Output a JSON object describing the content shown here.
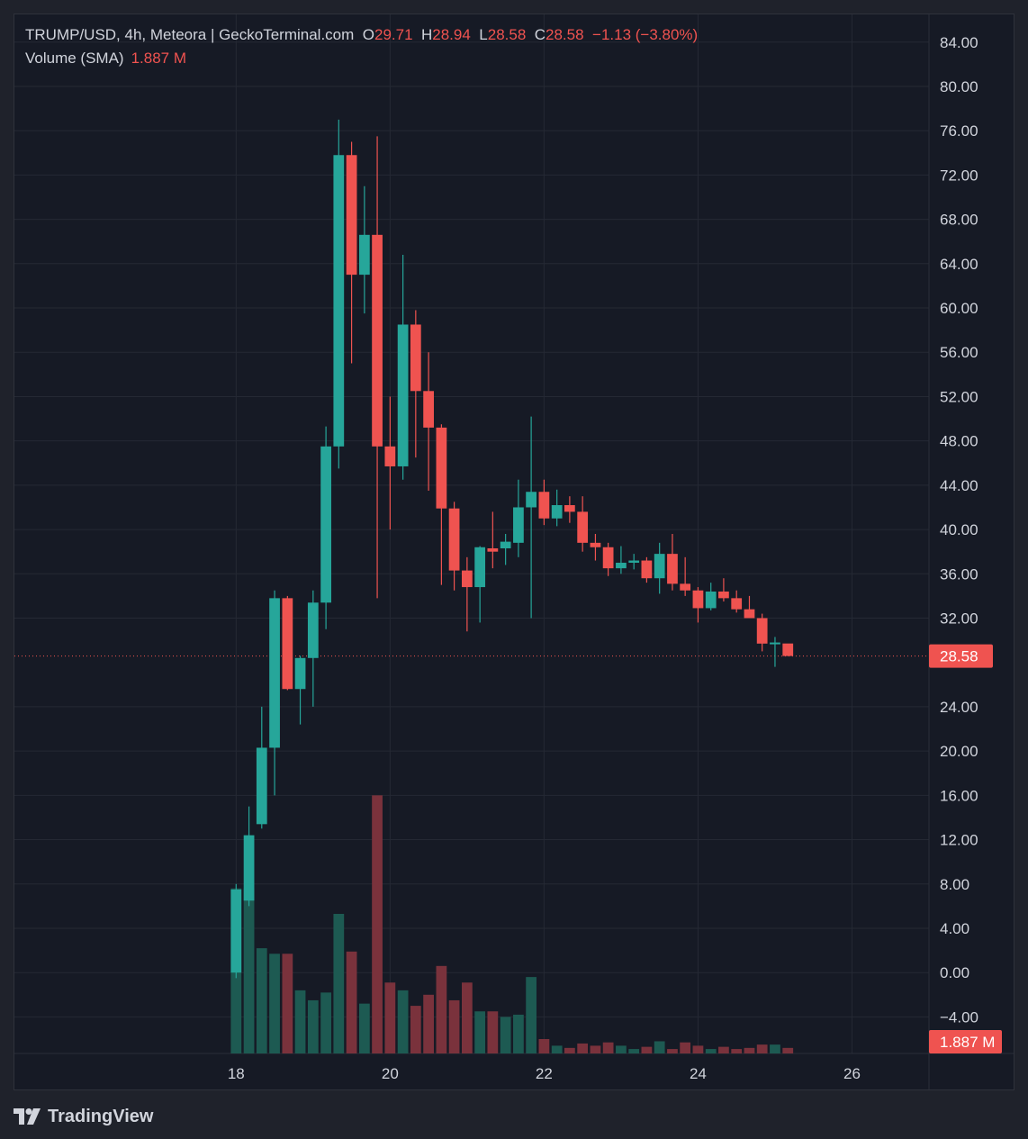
{
  "legend": {
    "symbol": "TRUMP/USD, 4h, Meteora | GeckoTerminal.com",
    "o_label": "O",
    "o_value": "29.71",
    "h_label": "H",
    "h_value": "28.94",
    "l_label": "L",
    "l_value": "28.58",
    "c_label": "C",
    "c_value": "28.58",
    "change": "−1.13 (−3.80%)",
    "volume_label": "Volume (SMA)",
    "volume_value": "1.887 M"
  },
  "branding": {
    "name": "TradingView",
    "icon": "tradingview-logo-icon"
  },
  "colors": {
    "up": "#26a69a",
    "down": "#ef5350",
    "vol_up": "#1d5a52",
    "vol_down": "#7a323c",
    "grid": "#252934",
    "text": "#d1d4dc",
    "background": "#161a25"
  },
  "chart_data": {
    "type": "candlestick",
    "interval": "4h",
    "y_axis": {
      "ticks": [
        "84.00",
        "80.00",
        "76.00",
        "72.00",
        "68.00",
        "64.00",
        "60.00",
        "56.00",
        "52.00",
        "48.00",
        "44.00",
        "40.00",
        "36.00",
        "32.00",
        "24.00",
        "20.00",
        "16.00",
        "12.00",
        "8.00",
        "4.00",
        "0.00",
        "−4.00"
      ],
      "last_price_label": "28.58",
      "volume_label": "1.887 M",
      "range": [
        -7.3,
        86.5
      ]
    },
    "x_axis": {
      "ticks": [
        "18",
        "20",
        "22",
        "24",
        "26"
      ],
      "range": [
        15.12,
        27.0
      ]
    },
    "last_price": 28.58,
    "volume_max_ref": 16.0,
    "candles": [
      {
        "t": 18.0,
        "o": 0.0,
        "h": 8.0,
        "l": -0.5,
        "c": 7.5,
        "v": 7.6
      },
      {
        "t": 18.167,
        "o": 6.5,
        "h": 15.0,
        "l": 6.0,
        "c": 12.4,
        "v": 7.6
      },
      {
        "t": 18.333,
        "o": 13.4,
        "h": 24.0,
        "l": 13.0,
        "c": 20.3,
        "v": 2.2
      },
      {
        "t": 18.5,
        "o": 20.3,
        "h": 34.5,
        "l": 16.0,
        "c": 33.8,
        "v": 1.7
      },
      {
        "t": 18.667,
        "o": 33.8,
        "h": 34.0,
        "l": 25.5,
        "c": 25.6,
        "v": 1.7
      },
      {
        "t": 18.833,
        "o": 25.6,
        "h": 28.6,
        "l": 22.4,
        "c": 28.4,
        "v": -1.6
      },
      {
        "t": 19.0,
        "o": 28.4,
        "h": 34.5,
        "l": 24.0,
        "c": 33.4,
        "v": -2.5
      },
      {
        "t": 19.167,
        "o": 33.4,
        "h": 49.3,
        "l": 31.0,
        "c": 47.5,
        "v": -1.8
      },
      {
        "t": 19.333,
        "o": 47.5,
        "h": 77.0,
        "l": 45.5,
        "c": 73.8,
        "v": 5.3
      },
      {
        "t": 19.5,
        "o": 73.8,
        "h": 75.0,
        "l": 55.0,
        "c": 63.0,
        "v": 1.9
      },
      {
        "t": 19.667,
        "o": 63.0,
        "h": 71.0,
        "l": 59.5,
        "c": 66.6,
        "v": -2.8
      },
      {
        "t": 19.833,
        "o": 66.6,
        "h": 75.5,
        "l": 33.8,
        "c": 47.5,
        "v": 16.0
      },
      {
        "t": 20.0,
        "o": 47.5,
        "h": 52.0,
        "l": 40.0,
        "c": 45.7,
        "v": -0.9
      },
      {
        "t": 20.167,
        "o": 45.7,
        "h": 64.8,
        "l": 44.5,
        "c": 58.5,
        "v": -1.6
      },
      {
        "t": 20.333,
        "o": 58.5,
        "h": 59.8,
        "l": 46.5,
        "c": 52.5,
        "v": -3.0
      },
      {
        "t": 20.5,
        "o": 52.5,
        "h": 56.0,
        "l": 43.5,
        "c": 49.2,
        "v": -2.0
      },
      {
        "t": 20.667,
        "o": 49.2,
        "h": 49.5,
        "l": 35.0,
        "c": 41.9,
        "v": 0.6
      },
      {
        "t": 20.833,
        "o": 41.9,
        "h": 42.5,
        "l": 34.5,
        "c": 36.3,
        "v": -2.5
      },
      {
        "t": 21.0,
        "o": 36.3,
        "h": 37.5,
        "l": 30.8,
        "c": 34.8,
        "v": -0.9
      },
      {
        "t": 21.167,
        "o": 34.8,
        "h": 38.5,
        "l": 31.6,
        "c": 38.4,
        "v": -3.5
      },
      {
        "t": 21.333,
        "o": 38.3,
        "h": 41.6,
        "l": 36.5,
        "c": 38.0,
        "v": -3.5
      },
      {
        "t": 21.5,
        "o": 38.3,
        "h": 39.6,
        "l": 36.8,
        "c": 38.9,
        "v": -4.0
      },
      {
        "t": 21.667,
        "o": 38.8,
        "h": 44.5,
        "l": 37.5,
        "c": 42.0,
        "v": -3.8
      },
      {
        "t": 21.833,
        "o": 42.0,
        "h": 50.2,
        "l": 32.0,
        "c": 43.4,
        "v": -0.4
      },
      {
        "t": 22.0,
        "o": 43.4,
        "h": 44.5,
        "l": 40.4,
        "c": 41.0,
        "v": -6.0
      },
      {
        "t": 22.167,
        "o": 41.0,
        "h": 43.6,
        "l": 40.3,
        "c": 42.2,
        "v": -6.6
      },
      {
        "t": 22.333,
        "o": 42.2,
        "h": 43.0,
        "l": 40.6,
        "c": 41.6,
        "v": -6.8
      },
      {
        "t": 22.5,
        "o": 41.6,
        "h": 43.0,
        "l": 38.0,
        "c": 38.8,
        "v": -6.4
      },
      {
        "t": 22.667,
        "o": 38.8,
        "h": 39.6,
        "l": 37.2,
        "c": 38.4,
        "v": -6.6
      },
      {
        "t": 22.833,
        "o": 38.4,
        "h": 38.8,
        "l": 35.8,
        "c": 36.5,
        "v": -6.3
      },
      {
        "t": 23.0,
        "o": 36.5,
        "h": 38.5,
        "l": 36.0,
        "c": 37.0,
        "v": -6.6
      },
      {
        "t": 23.167,
        "o": 37.0,
        "h": 37.8,
        "l": 36.4,
        "c": 37.2,
        "v": -6.9
      },
      {
        "t": 23.333,
        "o": 37.2,
        "h": 37.5,
        "l": 35.2,
        "c": 35.6,
        "v": -6.7
      },
      {
        "t": 23.5,
        "o": 35.6,
        "h": 38.8,
        "l": 34.2,
        "c": 37.8,
        "v": -6.2
      },
      {
        "t": 23.667,
        "o": 37.8,
        "h": 39.6,
        "l": 34.5,
        "c": 35.1,
        "v": -6.9
      },
      {
        "t": 23.833,
        "o": 35.1,
        "h": 37.5,
        "l": 34.0,
        "c": 34.5,
        "v": -6.3
      },
      {
        "t": 24.0,
        "o": 34.5,
        "h": 34.8,
        "l": 31.6,
        "c": 32.9,
        "v": -6.6
      },
      {
        "t": 24.167,
        "o": 32.9,
        "h": 35.2,
        "l": 32.7,
        "c": 34.4,
        "v": -6.9
      },
      {
        "t": 24.333,
        "o": 34.4,
        "h": 35.6,
        "l": 33.5,
        "c": 33.8,
        "v": -6.7
      },
      {
        "t": 24.5,
        "o": 33.8,
        "h": 34.5,
        "l": 32.5,
        "c": 32.8,
        "v": -6.9
      },
      {
        "t": 24.667,
        "o": 32.8,
        "h": 34.0,
        "l": 32.2,
        "c": 32.0,
        "v": -6.8
      },
      {
        "t": 24.833,
        "o": 32.0,
        "h": 32.4,
        "l": 29.0,
        "c": 29.7,
        "v": -6.5
      },
      {
        "t": 25.0,
        "o": 29.7,
        "h": 30.3,
        "l": 27.6,
        "c": 29.8,
        "v": -6.5
      },
      {
        "t": 25.167,
        "o": 29.71,
        "h": 28.94,
        "l": 28.58,
        "c": 28.58,
        "v": -6.8
      }
    ]
  }
}
